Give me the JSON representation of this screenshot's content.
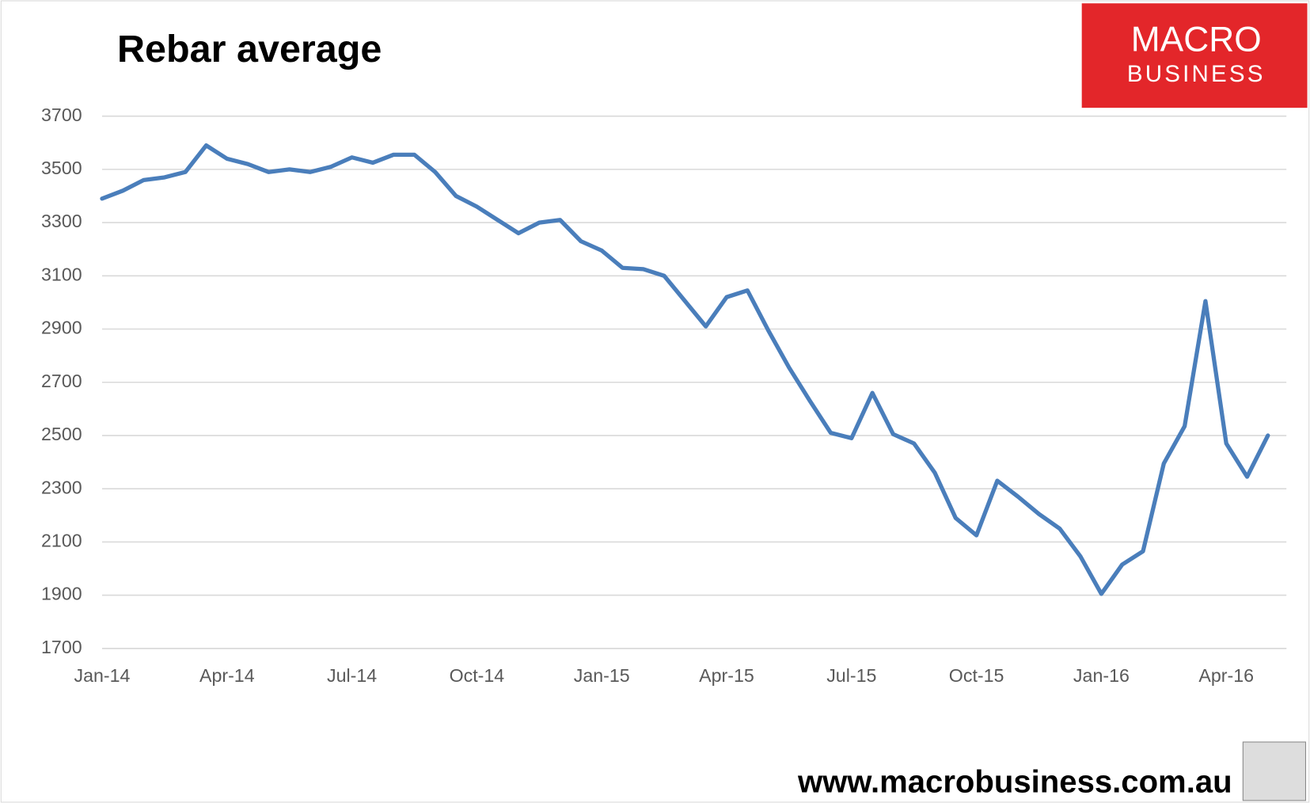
{
  "chart_data": {
    "type": "line",
    "title": "Rebar average",
    "categories": [
      "Jan-14",
      null,
      null,
      null,
      null,
      null,
      "Apr-14",
      null,
      null,
      null,
      null,
      null,
      "Jul-14",
      null,
      null,
      null,
      null,
      null,
      "Oct-14",
      null,
      null,
      null,
      null,
      null,
      "Jan-15",
      null,
      null,
      null,
      null,
      null,
      "Apr-15",
      null,
      null,
      null,
      null,
      null,
      "Jul-15",
      null,
      null,
      null,
      null,
      null,
      "Oct-15",
      null,
      null,
      null,
      null,
      null,
      "Jan-16",
      null,
      null,
      null,
      null,
      null,
      "Apr-16",
      null,
      null
    ],
    "series": [
      {
        "name": "Rebar average",
        "color": "#4a7ebb",
        "values": [
          3390,
          3420,
          3460,
          3470,
          3490,
          3590,
          3540,
          3520,
          3490,
          3500,
          3490,
          3510,
          3545,
          3525,
          3555,
          3555,
          3490,
          3400,
          3360,
          3310,
          3260,
          3300,
          3310,
          3230,
          3195,
          3130,
          3125,
          3100,
          3005,
          2910,
          3020,
          3045,
          2895,
          2755,
          2630,
          2510,
          2490,
          2660,
          2505,
          2470,
          2360,
          2190,
          2125,
          2330,
          2270,
          2205,
          2150,
          2045,
          1905,
          2015,
          2065,
          2395,
          2535,
          3005,
          2470,
          2345,
          2500
        ]
      }
    ],
    "ylim": [
      1700,
      3700
    ],
    "yticks": [
      1700,
      1900,
      2100,
      2300,
      2500,
      2700,
      2900,
      3100,
      3300,
      3500,
      3700
    ],
    "grid": true
  },
  "logo": {
    "line1": "MACRO",
    "line2": "BUSINESS"
  },
  "footer": "www.macrobusiness.com.au"
}
